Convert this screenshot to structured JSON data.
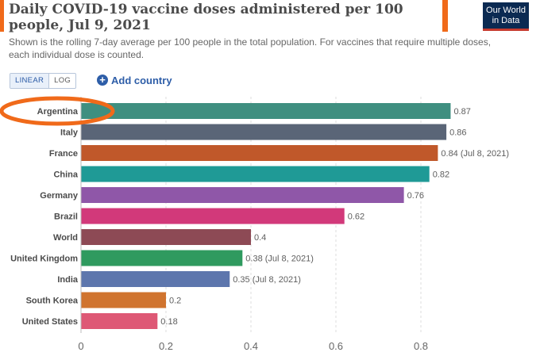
{
  "header": {
    "title": "Daily COVID-19 vaccine doses administered per 100 people, Jul 9, 2021",
    "subtitle": "Shown is the rolling 7-day average per 100 people in the total population. For vaccines that require multiple doses, each individual dose is counted.",
    "logo_line1": "Our World",
    "logo_line2": "in Data"
  },
  "controls": {
    "linear_label": "LINEAR",
    "log_label": "LOG",
    "add_country_label": "Add country",
    "add_icon_glyph": "+"
  },
  "colors": {
    "highlight_accent": "#f06a1a",
    "logo_bg": "#0b2a52",
    "logo_underline": "#c63b2f"
  },
  "chart_data": {
    "type": "bar",
    "orientation": "horizontal",
    "categories": [
      "Argentina",
      "Italy",
      "France",
      "China",
      "Germany",
      "Brazil",
      "World",
      "United Kingdom",
      "India",
      "South Korea",
      "United States"
    ],
    "values": [
      0.87,
      0.86,
      0.84,
      0.82,
      0.76,
      0.62,
      0.4,
      0.38,
      0.35,
      0.2,
      0.18
    ],
    "value_labels": [
      "0.87",
      "0.86",
      "0.84 (Jul 8, 2021)",
      "0.82",
      "0.76",
      "0.62",
      "0.4",
      "0.38 (Jul 8, 2021)",
      "0.35 (Jul 8, 2021)",
      "0.2",
      "0.18"
    ],
    "colors": [
      "#3f8f80",
      "#5a6577",
      "#c0582a",
      "#1f9a96",
      "#8f57a8",
      "#d2397a",
      "#8d4a55",
      "#2f9a5f",
      "#5d76ad",
      "#d0742f",
      "#de5875"
    ],
    "xlim": [
      0,
      0.9
    ],
    "xticks": [
      0,
      0.2,
      0.4,
      0.6,
      0.8
    ],
    "xtick_labels": [
      "0",
      "0.2",
      "0.4",
      "0.6",
      "0.8"
    ],
    "grid": "vertical dashed",
    "highlighted_category": "Argentina",
    "title": "Daily COVID-19 vaccine doses administered per 100 people, Jul 9, 2021",
    "xlabel": "",
    "ylabel": ""
  }
}
